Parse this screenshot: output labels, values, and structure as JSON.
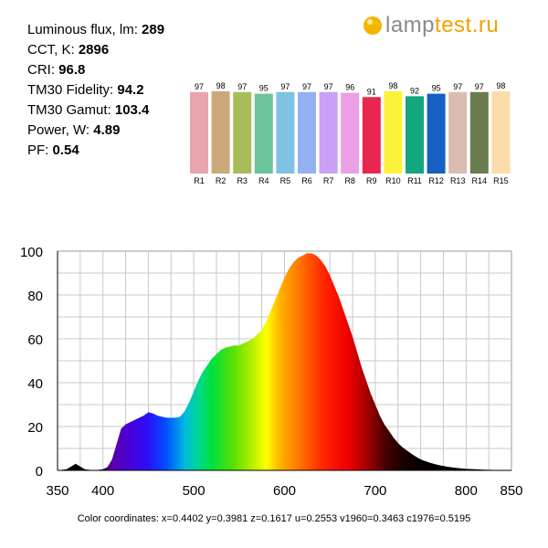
{
  "stats": [
    {
      "label": "Luminous flux, lm: ",
      "value": "289"
    },
    {
      "label": "CCT, K: ",
      "value": "2896"
    },
    {
      "label": "CRI: ",
      "value": "96.8"
    },
    {
      "label": "TM30 Fidelity: ",
      "value": "94.2"
    },
    {
      "label": "TM30 Gamut: ",
      "value": "103.4"
    },
    {
      "label": "Power, W:  ",
      "value": "4.89"
    },
    {
      "label": "PF:  ",
      "value": "0.54"
    }
  ],
  "logo": {
    "part1": "lamp",
    "part2": "test.ru"
  },
  "color_coordinates": "Color coordinates: x=0.4402 y=0.3981 z=0.1617 u=0.2553 v1960=0.3463 c1976=0.5195",
  "chart_data": [
    {
      "type": "bar",
      "categories": [
        "R1",
        "R2",
        "R3",
        "R4",
        "R5",
        "R6",
        "R7",
        "R8",
        "R9",
        "R10",
        "R11",
        "R12",
        "R13",
        "R14",
        "R15"
      ],
      "values": [
        97,
        98,
        97,
        95,
        97,
        97,
        97,
        96,
        91,
        98,
        92,
        95,
        97,
        97,
        98
      ],
      "colors": [
        "#e8a5ad",
        "#caa87c",
        "#a8bd5a",
        "#6cc49a",
        "#80c2e2",
        "#95b0f0",
        "#c9a0f5",
        "#eba0e6",
        "#e8264f",
        "#fcf23a",
        "#13a67f",
        "#1660c4",
        "#dcbcb0",
        "#6b7d4e",
        "#fcdcaa"
      ],
      "ylim": [
        0,
        100
      ]
    },
    {
      "type": "area",
      "title": "",
      "xlabel": "",
      "ylabel": "",
      "xlim": [
        350,
        850
      ],
      "ylim": [
        0,
        100
      ],
      "xticks": [
        350,
        400,
        500,
        600,
        700,
        800,
        850
      ],
      "yticks": [
        0,
        20,
        40,
        60,
        80,
        100
      ],
      "grid": true,
      "x": [
        350,
        360,
        370,
        380,
        390,
        400,
        405,
        410,
        415,
        420,
        425,
        430,
        435,
        440,
        445,
        450,
        455,
        460,
        465,
        470,
        475,
        480,
        485,
        490,
        495,
        500,
        505,
        510,
        515,
        520,
        525,
        530,
        535,
        540,
        545,
        550,
        555,
        560,
        565,
        570,
        575,
        580,
        585,
        590,
        595,
        600,
        605,
        610,
        615,
        620,
        625,
        630,
        635,
        640,
        645,
        650,
        655,
        660,
        665,
        670,
        675,
        680,
        685,
        690,
        695,
        700,
        705,
        710,
        715,
        720,
        725,
        730,
        735,
        740,
        745,
        750,
        755,
        760,
        765,
        770,
        780,
        790,
        800,
        810,
        820,
        830,
        840,
        850
      ],
      "y": [
        0,
        0.5,
        3,
        0.5,
        0,
        0.5,
        1.5,
        5,
        12,
        19,
        21,
        22,
        23,
        24,
        25,
        26.5,
        26,
        25,
        24.5,
        24,
        24,
        24,
        24.5,
        27,
        31,
        36,
        41,
        45,
        48,
        51,
        53,
        55,
        56,
        56.5,
        57,
        57,
        58,
        59,
        60,
        62,
        64,
        68,
        73,
        78,
        83,
        88,
        92,
        95,
        97,
        98,
        99,
        99,
        98,
        96,
        93,
        89,
        84,
        79,
        73,
        67,
        61,
        54,
        47,
        41,
        35,
        30,
        25,
        21,
        18,
        15,
        12.5,
        10.5,
        9,
        7.5,
        6.2,
        5,
        4.2,
        3.5,
        2.9,
        2.4,
        1.6,
        1.1,
        0.7,
        0.5,
        0.3,
        0.2,
        0.1,
        0
      ]
    }
  ]
}
